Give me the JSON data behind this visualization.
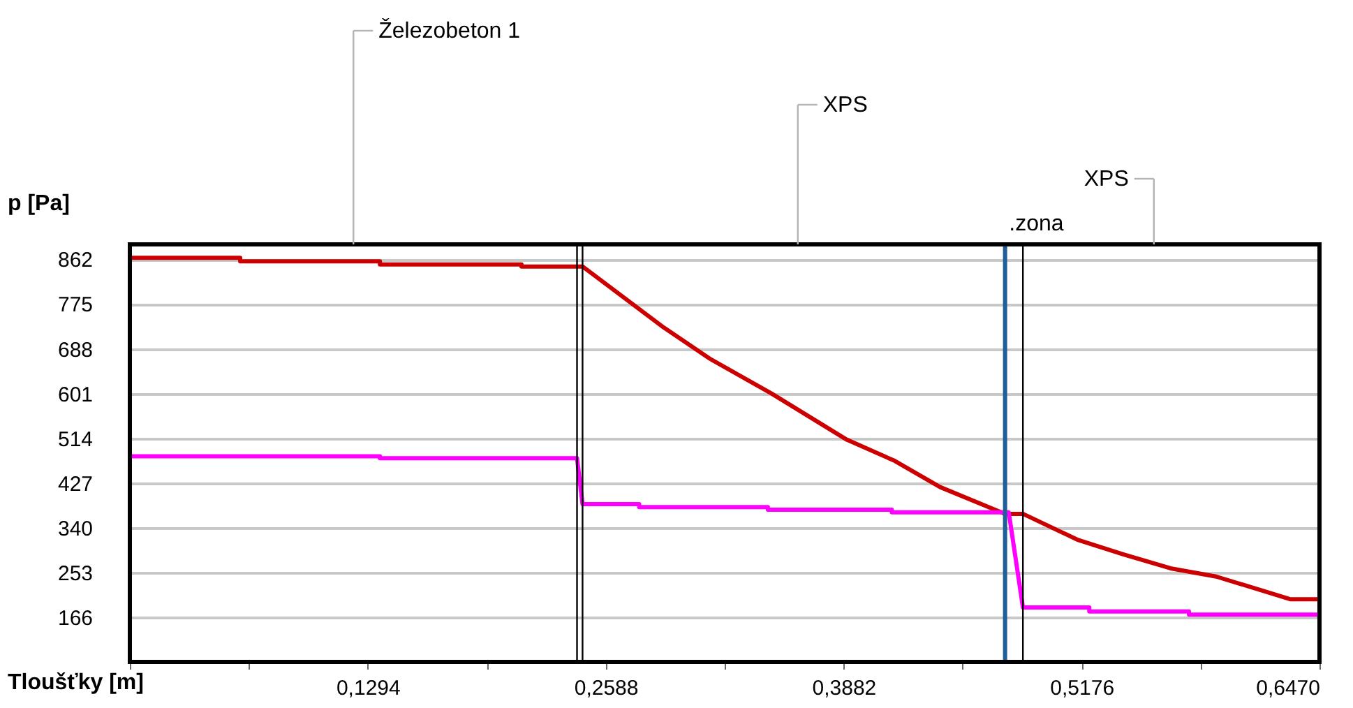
{
  "chart_data": {
    "type": "line",
    "xlabel": "Tloušťky [m]",
    "ylabel": "p [Pa]",
    "xlim": [
      0,
      0.647
    ],
    "ylim": [
      79,
      891
    ],
    "xticks": [
      {
        "value": 0,
        "label": null
      },
      {
        "value": 0.0647,
        "label": null
      },
      {
        "value": 0.1294,
        "label": "0,1294"
      },
      {
        "value": 0.1941,
        "label": null
      },
      {
        "value": 0.2588,
        "label": "0,2588"
      },
      {
        "value": 0.3235,
        "label": null
      },
      {
        "value": 0.3882,
        "label": "0,3882"
      },
      {
        "value": 0.4529,
        "label": null
      },
      {
        "value": 0.5176,
        "label": "0,5176"
      },
      {
        "value": 0.5823,
        "label": null
      },
      {
        "value": 0.647,
        "label": "0,6470"
      }
    ],
    "yticks": [
      166,
      253,
      340,
      427,
      514,
      601,
      688,
      775,
      862
    ],
    "grid": "y",
    "marker": "none",
    "line_style": "solid",
    "series": [
      {
        "color": "#cc0000",
        "x": [
          0,
          0.06,
          0.06,
          0.136,
          0.136,
          0.213,
          0.213,
          0.2462,
          0.2905,
          0.3153,
          0.349,
          0.39,
          0.416,
          0.4407,
          0.476,
          0.4857,
          0.5158,
          0.5405,
          0.566,
          0.5908,
          0.6156,
          0.631,
          0.647
        ],
        "values": [
          865,
          865,
          858,
          858,
          852,
          852,
          848,
          848,
          729,
          669,
          601,
          511,
          470,
          419,
          367,
          367,
          316,
          288,
          261,
          245,
          218,
          201,
          201
        ]
      },
      {
        "color": "#ff00ff",
        "x": [
          0,
          0.136,
          0.136,
          0.2432,
          0.2462,
          0.277,
          0.277,
          0.347,
          0.347,
          0.4144,
          0.4144,
          0.478,
          0.4857,
          0.5218,
          0.5218,
          0.576,
          0.576,
          0.647
        ],
        "values": [
          479,
          479,
          475,
          475,
          386,
          386,
          380,
          380,
          375,
          375,
          370,
          370,
          185,
          185,
          177,
          177,
          171,
          171
        ]
      }
    ],
    "ref_lines": [
      {
        "axis": "x",
        "value": 0.2432,
        "color": "#000000"
      },
      {
        "axis": "x",
        "value": 0.2462,
        "color": "#000000"
      },
      {
        "axis": "x",
        "value": 0.476,
        "color": "#1f5f9a"
      },
      {
        "axis": "x",
        "value": 0.4857,
        "color": "#000000"
      }
    ],
    "annotations": [
      "Železobeton 1",
      "XPS",
      "XPS",
      ".zona"
    ]
  }
}
